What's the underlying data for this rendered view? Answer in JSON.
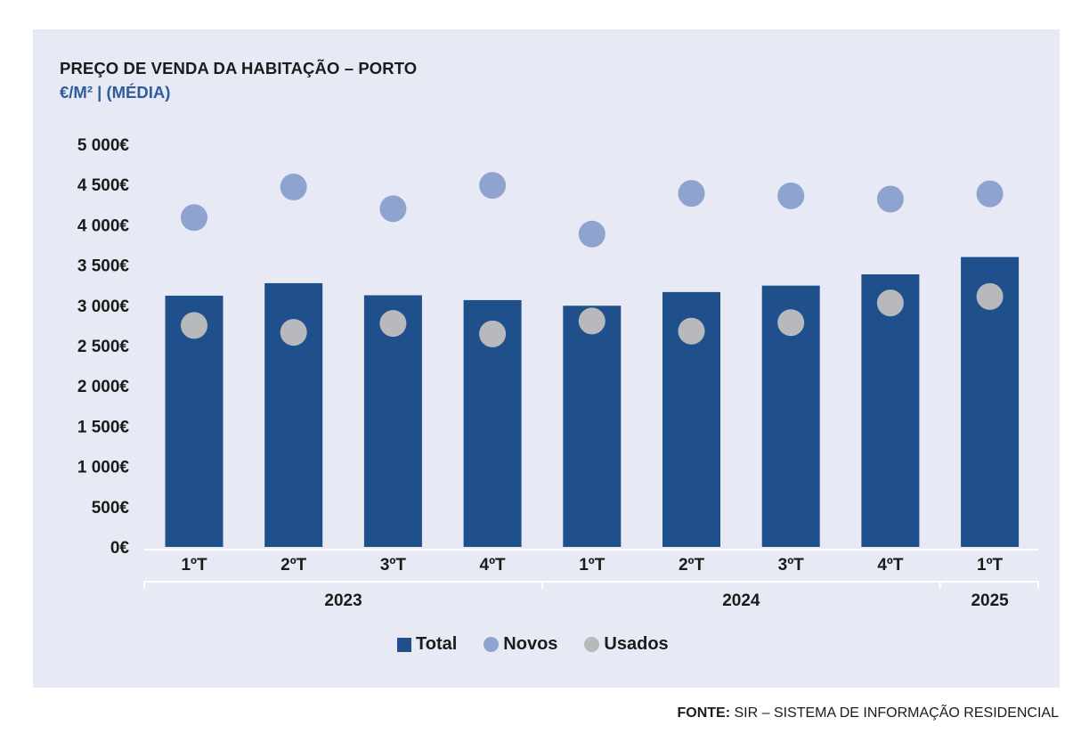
{
  "chart_data": {
    "type": "bar",
    "title": "PREÇO DE VENDA DA HABITAÇÃO – PORTO",
    "subtitle": "€/M² | (MÉDIA)",
    "categories": [
      "1ºT",
      "2ºT",
      "3ºT",
      "4ºT",
      "1ºT",
      "2ºT",
      "3ºT",
      "4ºT",
      "1ºT"
    ],
    "groups": [
      {
        "label": "2023",
        "count": 4
      },
      {
        "label": "2024",
        "count": 4
      },
      {
        "label": "2025",
        "count": 1
      }
    ],
    "series": [
      {
        "name": "Total",
        "kind": "bar",
        "color": "#20508b",
        "values": [
          3120,
          3275,
          3125,
          3065,
          2995,
          3165,
          3245,
          3385,
          3600
        ]
      },
      {
        "name": "Novos",
        "kind": "dot",
        "color": "#8ea3cf",
        "values": [
          4090,
          4470,
          4200,
          4490,
          3885,
          4390,
          4360,
          4320,
          4385
        ]
      },
      {
        "name": "Usados",
        "kind": "dot",
        "color": "#b8b9bd",
        "values": [
          2750,
          2665,
          2775,
          2645,
          2805,
          2680,
          2785,
          3030,
          3110
        ]
      }
    ],
    "ylim": [
      0,
      5000
    ],
    "yticks": [
      {
        "value": 0,
        "label": "0€"
      },
      {
        "value": 500,
        "label": "500€"
      },
      {
        "value": 1000,
        "label": "1 000€"
      },
      {
        "value": 1500,
        "label": "1 500€"
      },
      {
        "value": 2000,
        "label": "2 000€"
      },
      {
        "value": 2500,
        "label": "2 500€"
      },
      {
        "value": 3000,
        "label": "3 000€"
      },
      {
        "value": 3500,
        "label": "3 500€"
      },
      {
        "value": 4000,
        "label": "4 000€"
      },
      {
        "value": 4500,
        "label": "4 500€"
      },
      {
        "value": 5000,
        "label": "5 000€"
      }
    ],
    "grid": false,
    "legend_position": "bottom"
  },
  "source": {
    "prefix": "FONTE:",
    "text": " SIR – SISTEMA DE INFORMAÇÃO RESIDENCIAL"
  }
}
